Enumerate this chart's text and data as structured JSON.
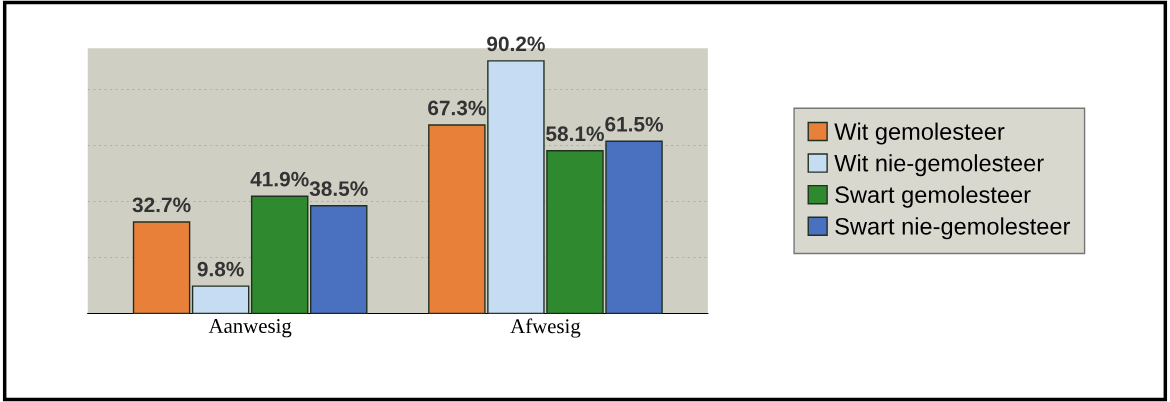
{
  "chart_data": {
    "type": "bar",
    "categories": [
      "Aanwesig",
      "Afwesig"
    ],
    "series": [
      {
        "name": "Wit gemolesteer",
        "color": "#e8803a",
        "values": [
          32.7,
          67.3
        ],
        "value_labels": [
          "32.7%",
          "67.3%"
        ]
      },
      {
        "name": "Wit nie-gemolesteer",
        "color": "#c6dcf2",
        "values": [
          9.8,
          90.2
        ],
        "value_labels": [
          "9.8%",
          "90.2%"
        ]
      },
      {
        "name": "Swart gemolesteer",
        "color": "#2f8a2f",
        "values": [
          41.9,
          58.1
        ],
        "value_labels": [
          "41.9%",
          "58.1%"
        ]
      },
      {
        "name": "Swart nie-gemolesteer",
        "color": "#4a70c0",
        "values": [
          38.5,
          61.5
        ],
        "value_labels": [
          "38.5%",
          "61.5%"
        ]
      }
    ],
    "grid": "y",
    "legend": "right"
  }
}
